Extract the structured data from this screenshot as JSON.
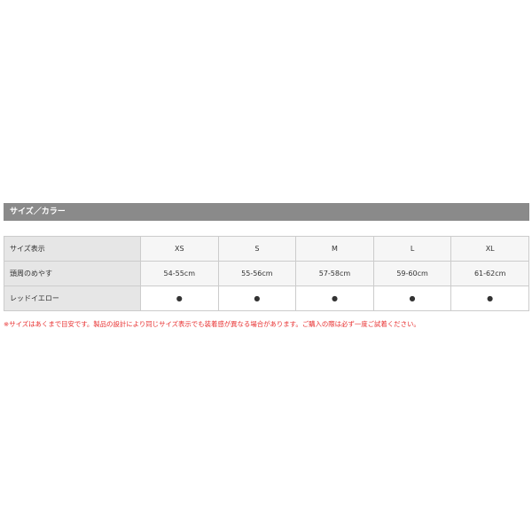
{
  "section_title": "サイズ／カラー",
  "table": {
    "rows": [
      {
        "label": "サイズ表示",
        "cells": [
          "XS",
          "S",
          "M",
          "L",
          "XL"
        ]
      },
      {
        "label": "頭周のめやす",
        "cells": [
          "54-55cm",
          "55-56cm",
          "57-58cm",
          "59-60cm",
          "61-62cm"
        ]
      },
      {
        "label": "レッドイエロー",
        "cells": [
          "●",
          "●",
          "●",
          "●",
          "●"
        ]
      }
    ]
  },
  "note": "※サイズはあくまで目安です。製品の設計により同じサイズ表示でも装着感が異なる場合があります。ご購入の際は必ず一度ご試着ください。",
  "colors": {
    "header_bar": "#8a8a8a",
    "note": "#e83030"
  }
}
